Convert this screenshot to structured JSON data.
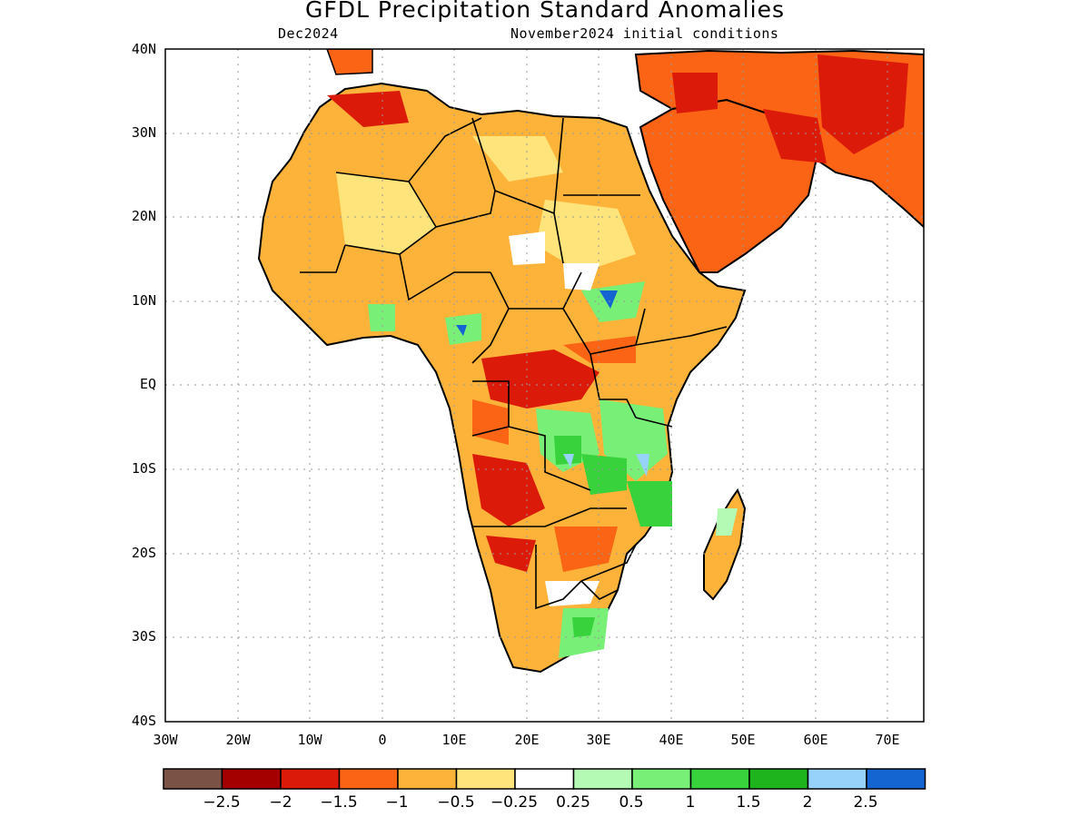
{
  "title": "GFDL Precipitation Standard Anomalies",
  "subtitle_left": "Dec2024",
  "subtitle_right": "November2024 initial conditions",
  "lat_labels": [
    "40N",
    "30N",
    "20N",
    "10N",
    "EQ",
    "10S",
    "20S",
    "30S",
    "40S"
  ],
  "lon_labels": [
    "30W",
    "20W",
    "10W",
    "0",
    "10E",
    "20E",
    "30E",
    "40E",
    "50E",
    "60E",
    "70E"
  ],
  "colorbar": {
    "colors": [
      "#7a5246",
      "#a50000",
      "#dc1a0a",
      "#fa6414",
      "#fdb23a",
      "#fee47a",
      "#ffffff",
      "#b4fab4",
      "#78f078",
      "#37d23c",
      "#1eb41e",
      "#96d2fa",
      "#1464d2"
    ],
    "labels": [
      "-2.5",
      "-2",
      "-1.5",
      "-1",
      "-0.5",
      "-0.25",
      "0.25",
      "0.5",
      "1",
      "1.5",
      "2",
      "2.5"
    ]
  },
  "map_colors": {
    "strong_dry": "#dc1a0a",
    "dry": "#fa6414",
    "moderate_dry": "#fdb23a",
    "slight_dry": "#fee47a",
    "slight_wet": "#b4fab4",
    "wet": "#78f078",
    "very_wet": "#37d23c",
    "extreme_wet": "#1464d2",
    "land": "#ffffff",
    "coast": "#000000"
  }
}
